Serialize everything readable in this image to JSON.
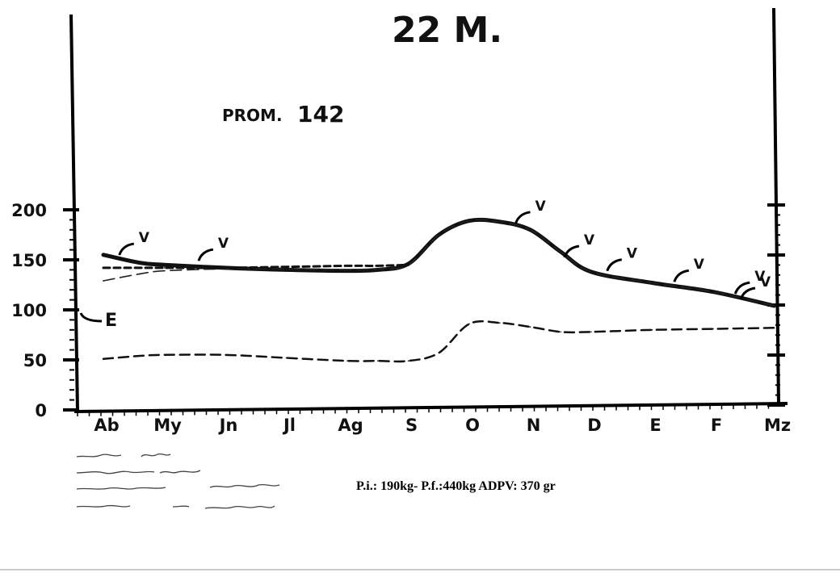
{
  "chart_data": {
    "type": "line",
    "title": "",
    "xlabel": "",
    "ylabel": "",
    "ylim": [
      0,
      200
    ],
    "y_ticks": [
      "0",
      "50",
      "100",
      "150",
      "200"
    ],
    "categories": [
      "Ab",
      "My",
      "Jn",
      "Jl",
      "Ag",
      "S",
      "O",
      "N",
      "D",
      "E",
      "F",
      "Mz"
    ],
    "x": [
      0,
      0.6,
      1,
      2,
      3,
      4,
      4.5,
      5,
      5.5,
      6,
      6.5,
      7,
      7.5,
      8,
      9,
      10,
      11
    ],
    "series": [
      {
        "name": "V",
        "style": "solid-thick",
        "values": [
          155,
          147,
          145,
          142,
          140,
          139,
          140,
          146,
          175,
          189,
          188,
          180,
          158,
          138,
          127,
          118,
          104
        ]
      },
      {
        "name": "",
        "style": "dashed-light",
        "values": [
          129,
          136,
          139,
          141,
          141,
          140,
          141,
          145,
          175,
          189,
          188,
          180,
          158,
          138,
          127,
          118,
          104
        ]
      },
      {
        "name": "PROM. 142",
        "style": "dashed-short",
        "values": [
          142,
          142,
          142,
          142,
          143,
          144,
          144,
          145,
          145,
          145,
          145,
          145,
          145,
          145,
          145,
          145,
          145
        ],
        "x_range": [
          0,
          5
        ]
      },
      {
        "name": "E",
        "style": "dashed",
        "values": [
          51,
          54,
          55,
          55,
          52,
          49,
          49,
          49,
          57,
          86,
          87,
          83,
          78,
          78,
          80,
          81,
          82
        ]
      }
    ],
    "annotations": {
      "peak_label": "22 M.",
      "prom_prefix": "PROM.",
      "prom_value": "142",
      "v_marker": "V",
      "e_marker": "E"
    },
    "grid": false,
    "legend": "none"
  },
  "caption": "P.i.: 190kg- P.f.:440kg ADPV: 370 gr"
}
